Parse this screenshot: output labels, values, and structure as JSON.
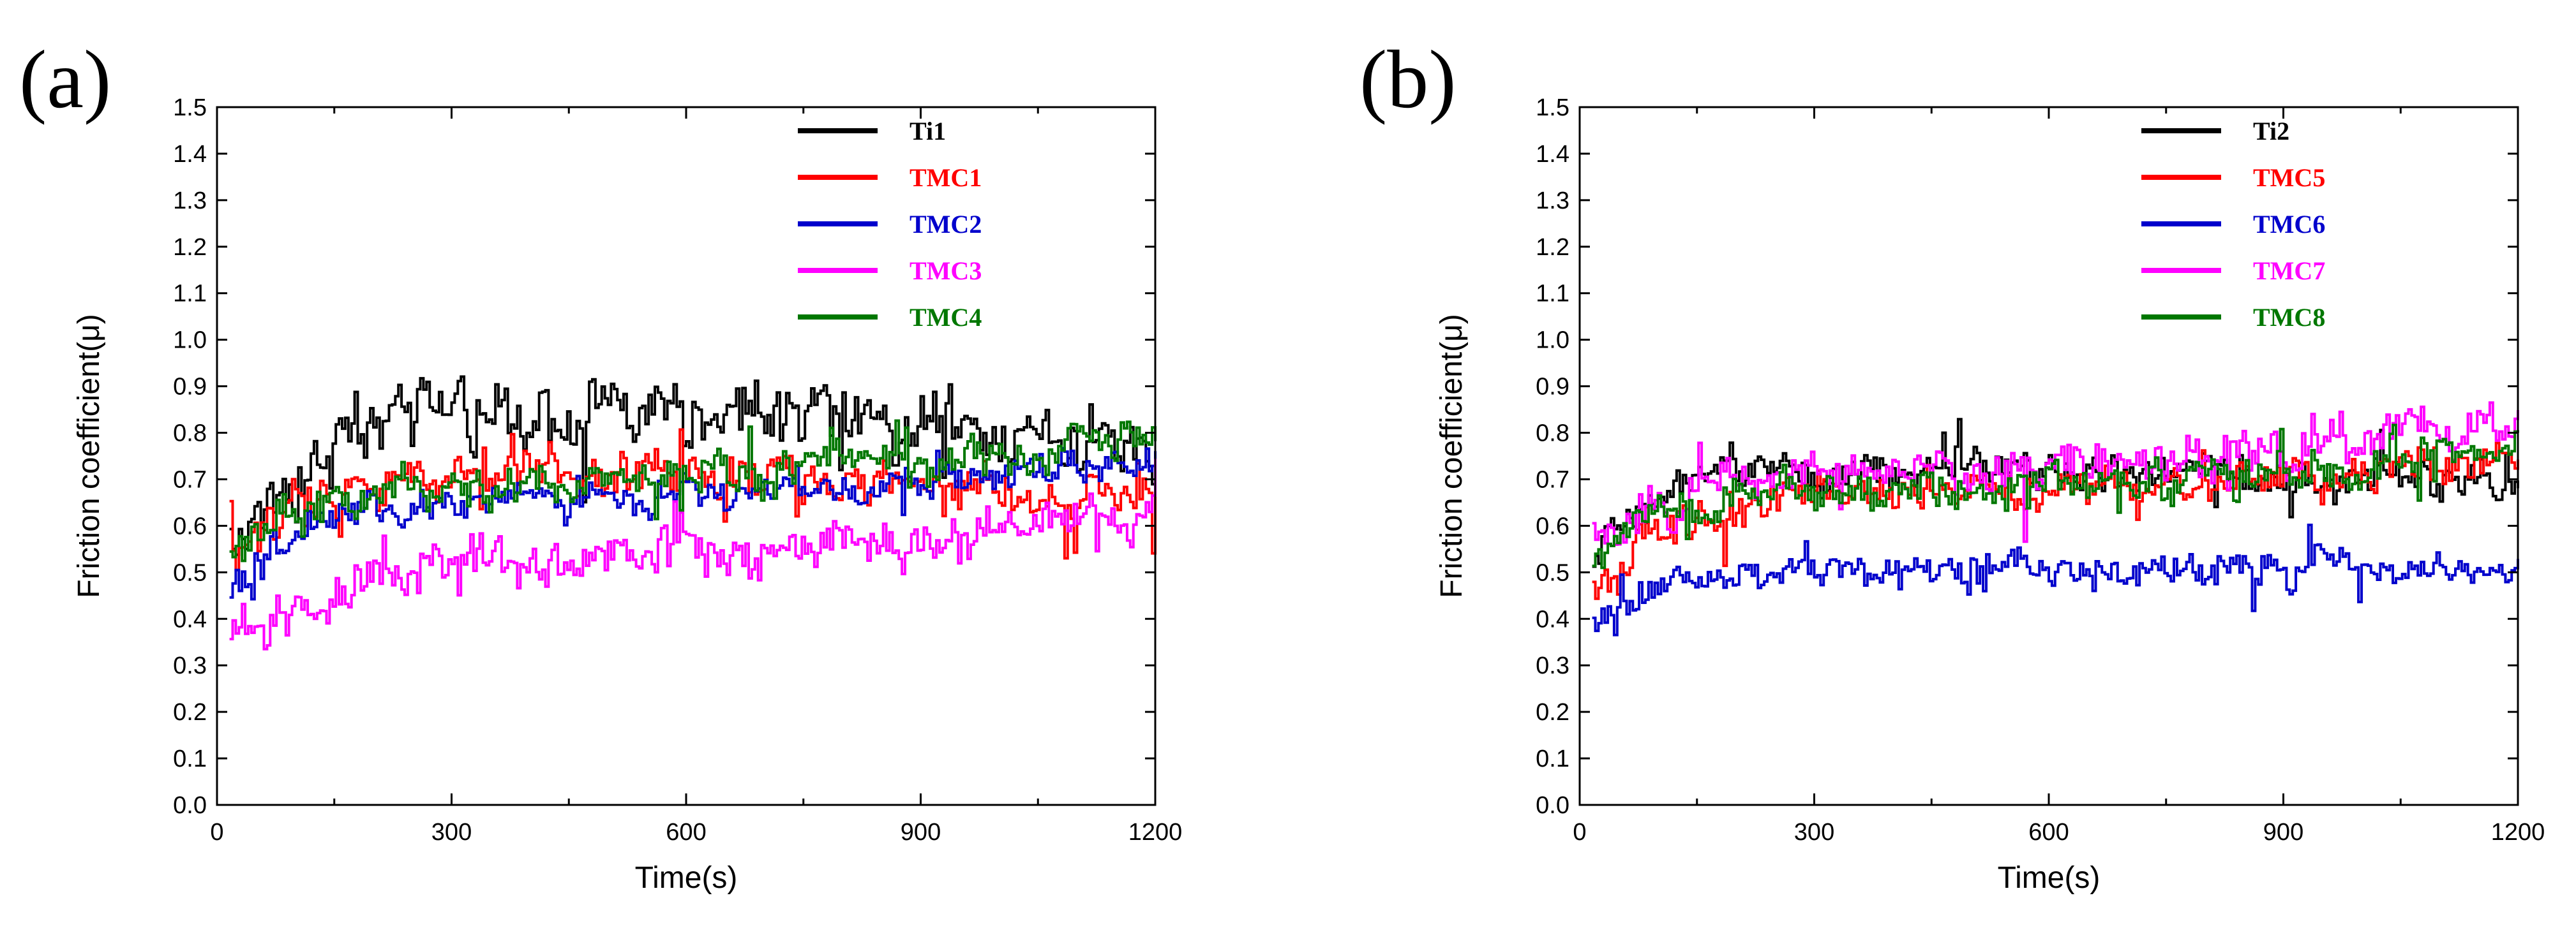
{
  "chart_data": [
    {
      "type": "line",
      "panel_label": "(a)",
      "xlabel": "Time(s)",
      "ylabel": "Friction coefficient(μ)",
      "xlim": [
        0,
        1200
      ],
      "ylim": [
        0,
        1.5
      ],
      "x_ticks": [
        "0",
        "300",
        "600",
        "900",
        "1200"
      ],
      "y_ticks": [
        "0.0",
        "0.1",
        "0.2",
        "0.3",
        "0.4",
        "0.5",
        "0.6",
        "0.7",
        "0.8",
        "0.9",
        "1.0",
        "1.1",
        "1.2",
        "1.3",
        "1.4",
        "1.5"
      ],
      "legend_position": "top-right",
      "sample_interval": 4,
      "series": [
        {
          "name": "Ti1",
          "color": "#000000",
          "start": 0.52,
          "end": 0.78,
          "rise": 0.22,
          "plateau": 0.84,
          "noise": 0.08
        },
        {
          "name": "TMC1",
          "color": "#ff0000",
          "start": 0.5,
          "end": 0.66,
          "rise": 0.2,
          "plateau": 0.71,
          "noise": 0.06
        },
        {
          "name": "TMC2",
          "color": "#0000cc",
          "start": 0.42,
          "end": 0.74,
          "rise": 0.2,
          "plateau": 0.65,
          "noise": 0.045
        },
        {
          "name": "TMC3",
          "color": "#ff00ff",
          "start": 0.33,
          "end": 0.63,
          "rise": 0.3,
          "plateau": 0.53,
          "noise": 0.06
        },
        {
          "name": "TMC4",
          "color": "#007700",
          "start": 0.5,
          "end": 0.8,
          "rise": 0.2,
          "plateau": 0.68,
          "noise": 0.055
        }
      ]
    },
    {
      "type": "line",
      "panel_label": "(b)",
      "xlabel": "Time(s)",
      "ylabel": "Friction coefficient(μ)",
      "xlim": [
        0,
        1200
      ],
      "ylim": [
        0,
        1.5
      ],
      "x_ticks": [
        "0",
        "300",
        "600",
        "900",
        "1200"
      ],
      "y_ticks": [
        "0.0",
        "0.1",
        "0.2",
        "0.3",
        "0.4",
        "0.5",
        "0.6",
        "0.7",
        "0.8",
        "0.9",
        "1.0",
        "1.1",
        "1.2",
        "1.3",
        "1.4",
        "1.5"
      ],
      "legend_position": "top-right",
      "sample_interval": 4,
      "series": [
        {
          "name": "Ti2",
          "color": "#000000",
          "start": 0.52,
          "end": 0.7,
          "rise": 0.2,
          "plateau": 0.72,
          "noise": 0.05
        },
        {
          "name": "TMC5",
          "color": "#ff0000",
          "start": 0.45,
          "end": 0.75,
          "rise": 0.25,
          "plateau": 0.67,
          "noise": 0.05
        },
        {
          "name": "TMC6",
          "color": "#0000cc",
          "start": 0.36,
          "end": 0.5,
          "rise": 0.15,
          "plateau": 0.51,
          "noise": 0.045
        },
        {
          "name": "TMC7",
          "color": "#ff00ff",
          "start": 0.55,
          "end": 0.84,
          "rise": 0.2,
          "plateau": 0.7,
          "noise": 0.06
        },
        {
          "name": "TMC8",
          "color": "#007700",
          "start": 0.5,
          "end": 0.77,
          "rise": 0.2,
          "plateau": 0.67,
          "noise": 0.05
        }
      ]
    }
  ]
}
